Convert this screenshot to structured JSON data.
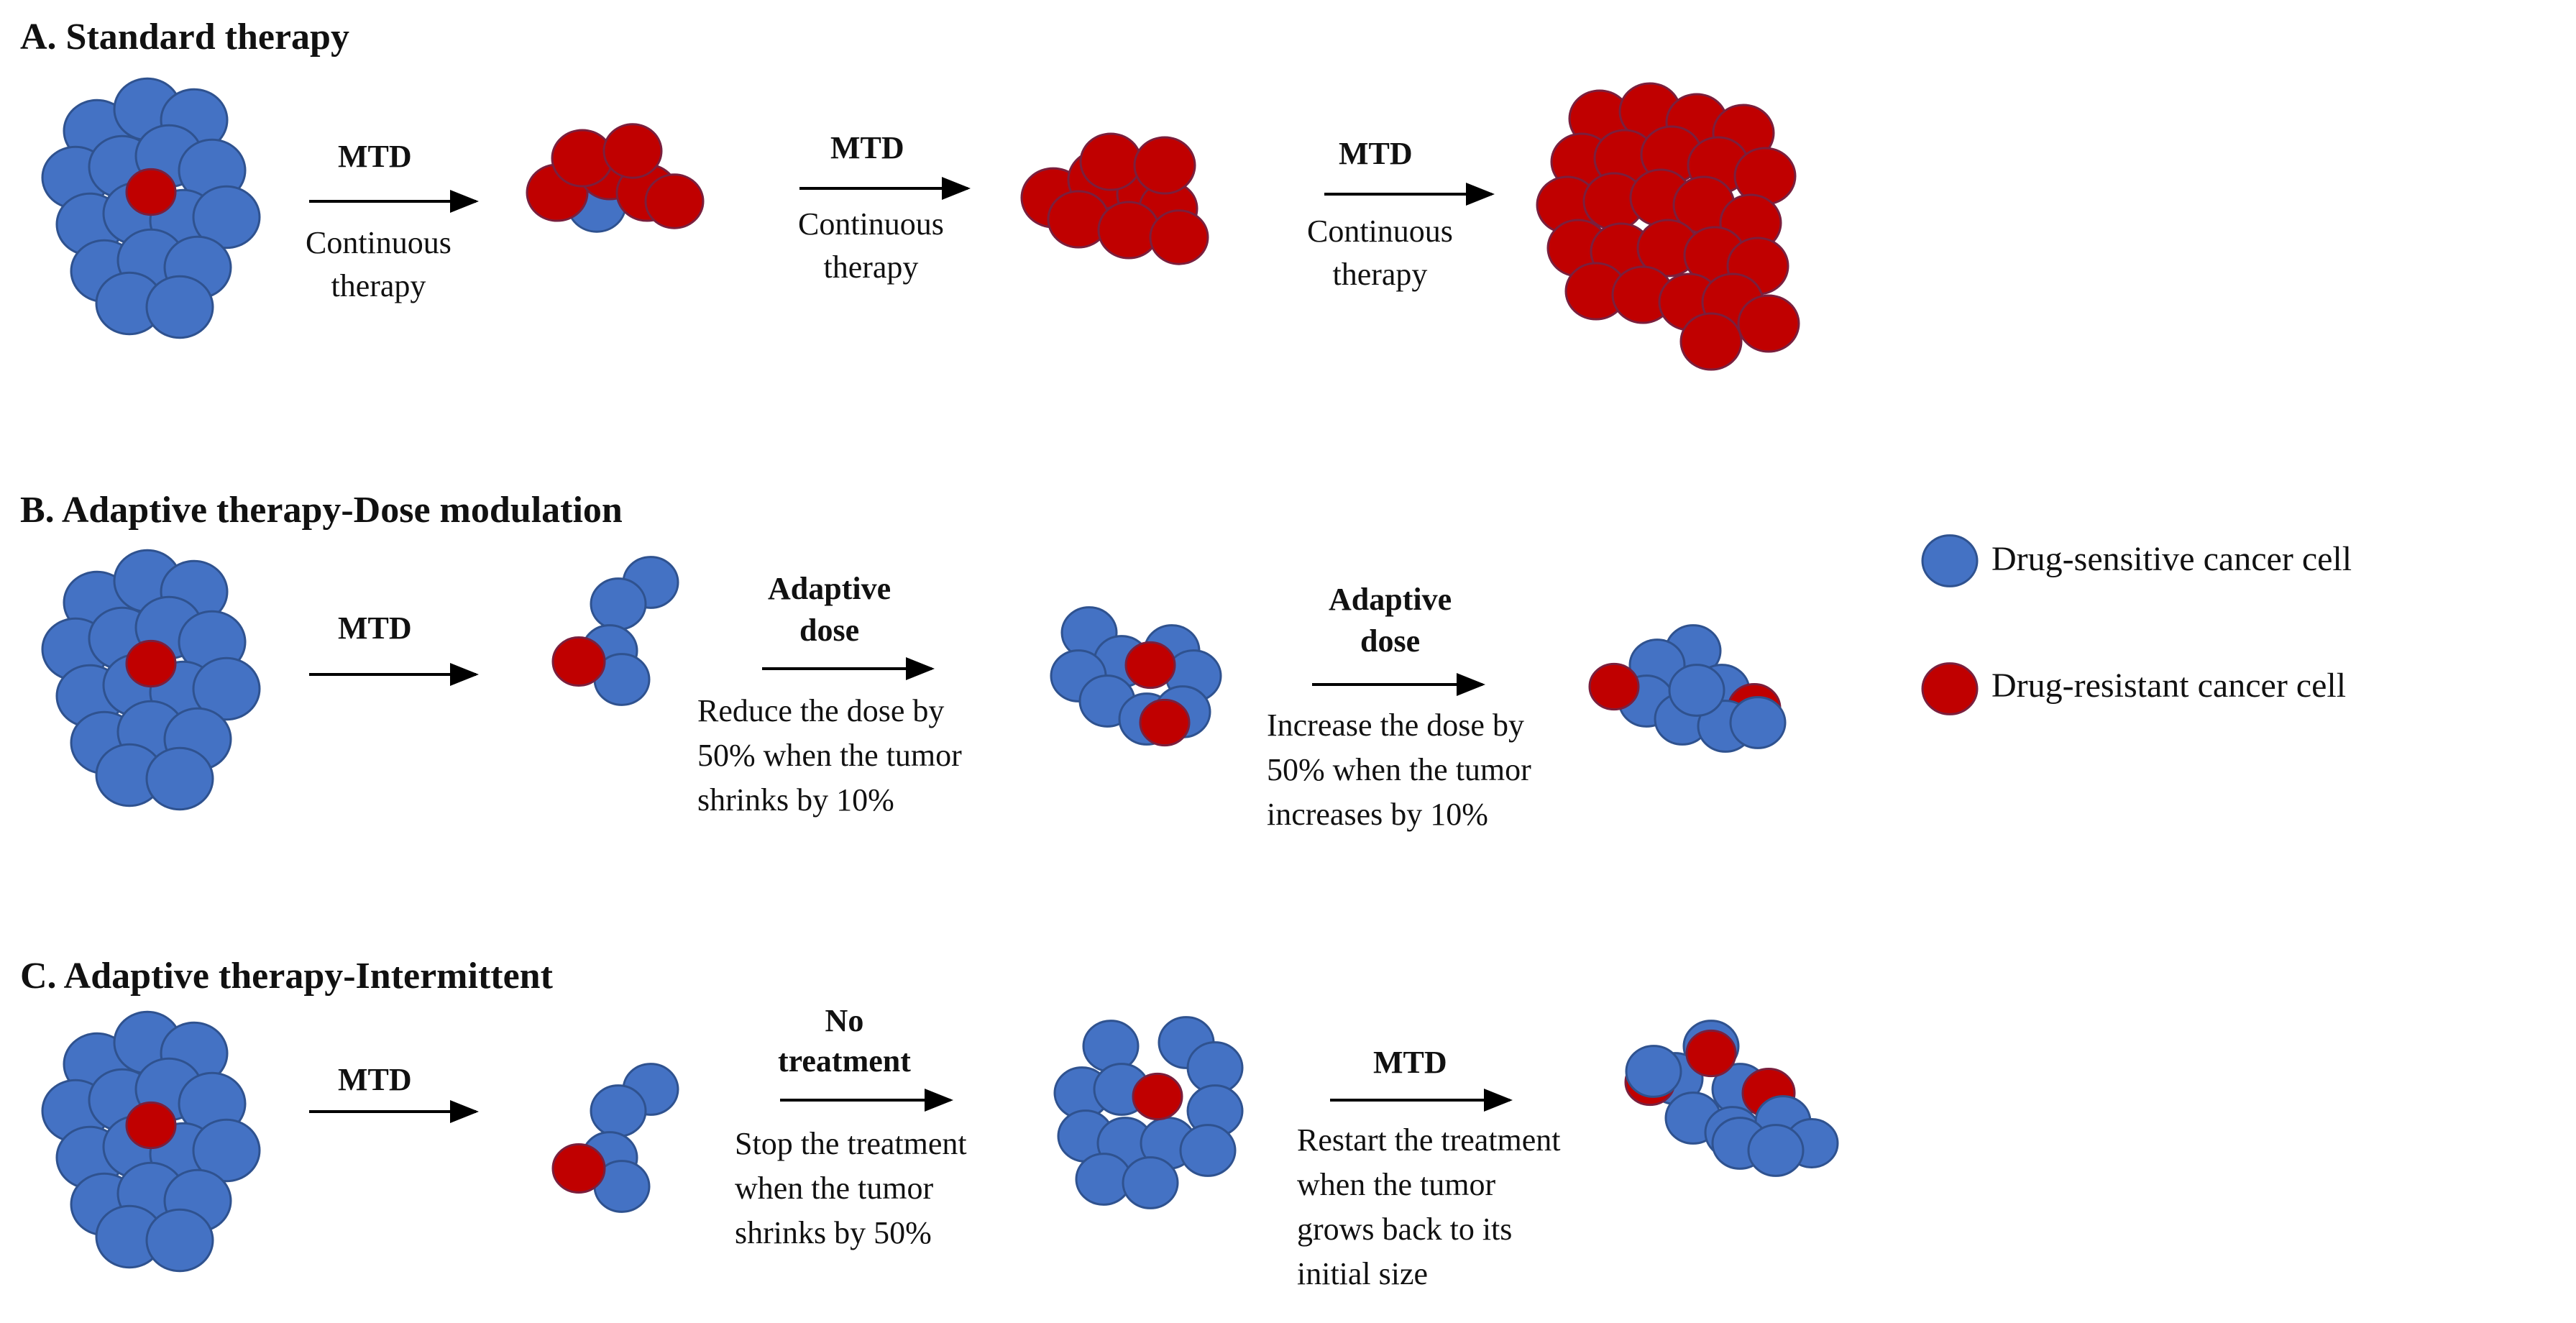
{
  "colors": {
    "sensitive_fill": "#4472C4",
    "sensitive_stroke": "#2F528F",
    "resistant_fill": "#C00000",
    "resistant_stroke": "#7A1F3D",
    "arrow": "#000000",
    "text": "#111111"
  },
  "sections": {
    "a": {
      "title": "A. Standard therapy",
      "steps": [
        {
          "top": "MTD",
          "bottom": [
            "Continuous",
            "therapy"
          ]
        },
        {
          "top": "MTD",
          "bottom": [
            "Continuous",
            "therapy"
          ]
        },
        {
          "top": "MTD",
          "bottom": [
            "Continuous",
            "therapy"
          ]
        }
      ]
    },
    "b": {
      "title": "B. Adaptive therapy-Dose modulation",
      "steps": [
        {
          "top": "MTD",
          "bottom": []
        },
        {
          "top": [
            "Adaptive",
            "dose"
          ],
          "bottom": [
            "Reduce the dose by",
            "50% when the tumor",
            "shrinks by 10%"
          ]
        },
        {
          "top": [
            "Adaptive",
            "dose"
          ],
          "bottom": [
            "Increase the dose by",
            "50% when the tumor",
            "increases by 10%"
          ]
        }
      ]
    },
    "c": {
      "title": "C. Adaptive therapy-Intermittent",
      "steps": [
        {
          "top": "MTD",
          "bottom": []
        },
        {
          "top": [
            "No",
            "treatment"
          ],
          "bottom": [
            "Stop the treatment",
            "when the tumor",
            "shrinks by 50%"
          ]
        },
        {
          "top": "MTD",
          "bottom": [
            "Restart the treatment",
            "when the tumor",
            "grows back to its",
            "initial size"
          ]
        }
      ]
    }
  },
  "legend": {
    "sensitive_label": "Drug-sensitive cancer cell",
    "resistant_label": "Drug-resistant cancer cell"
  }
}
